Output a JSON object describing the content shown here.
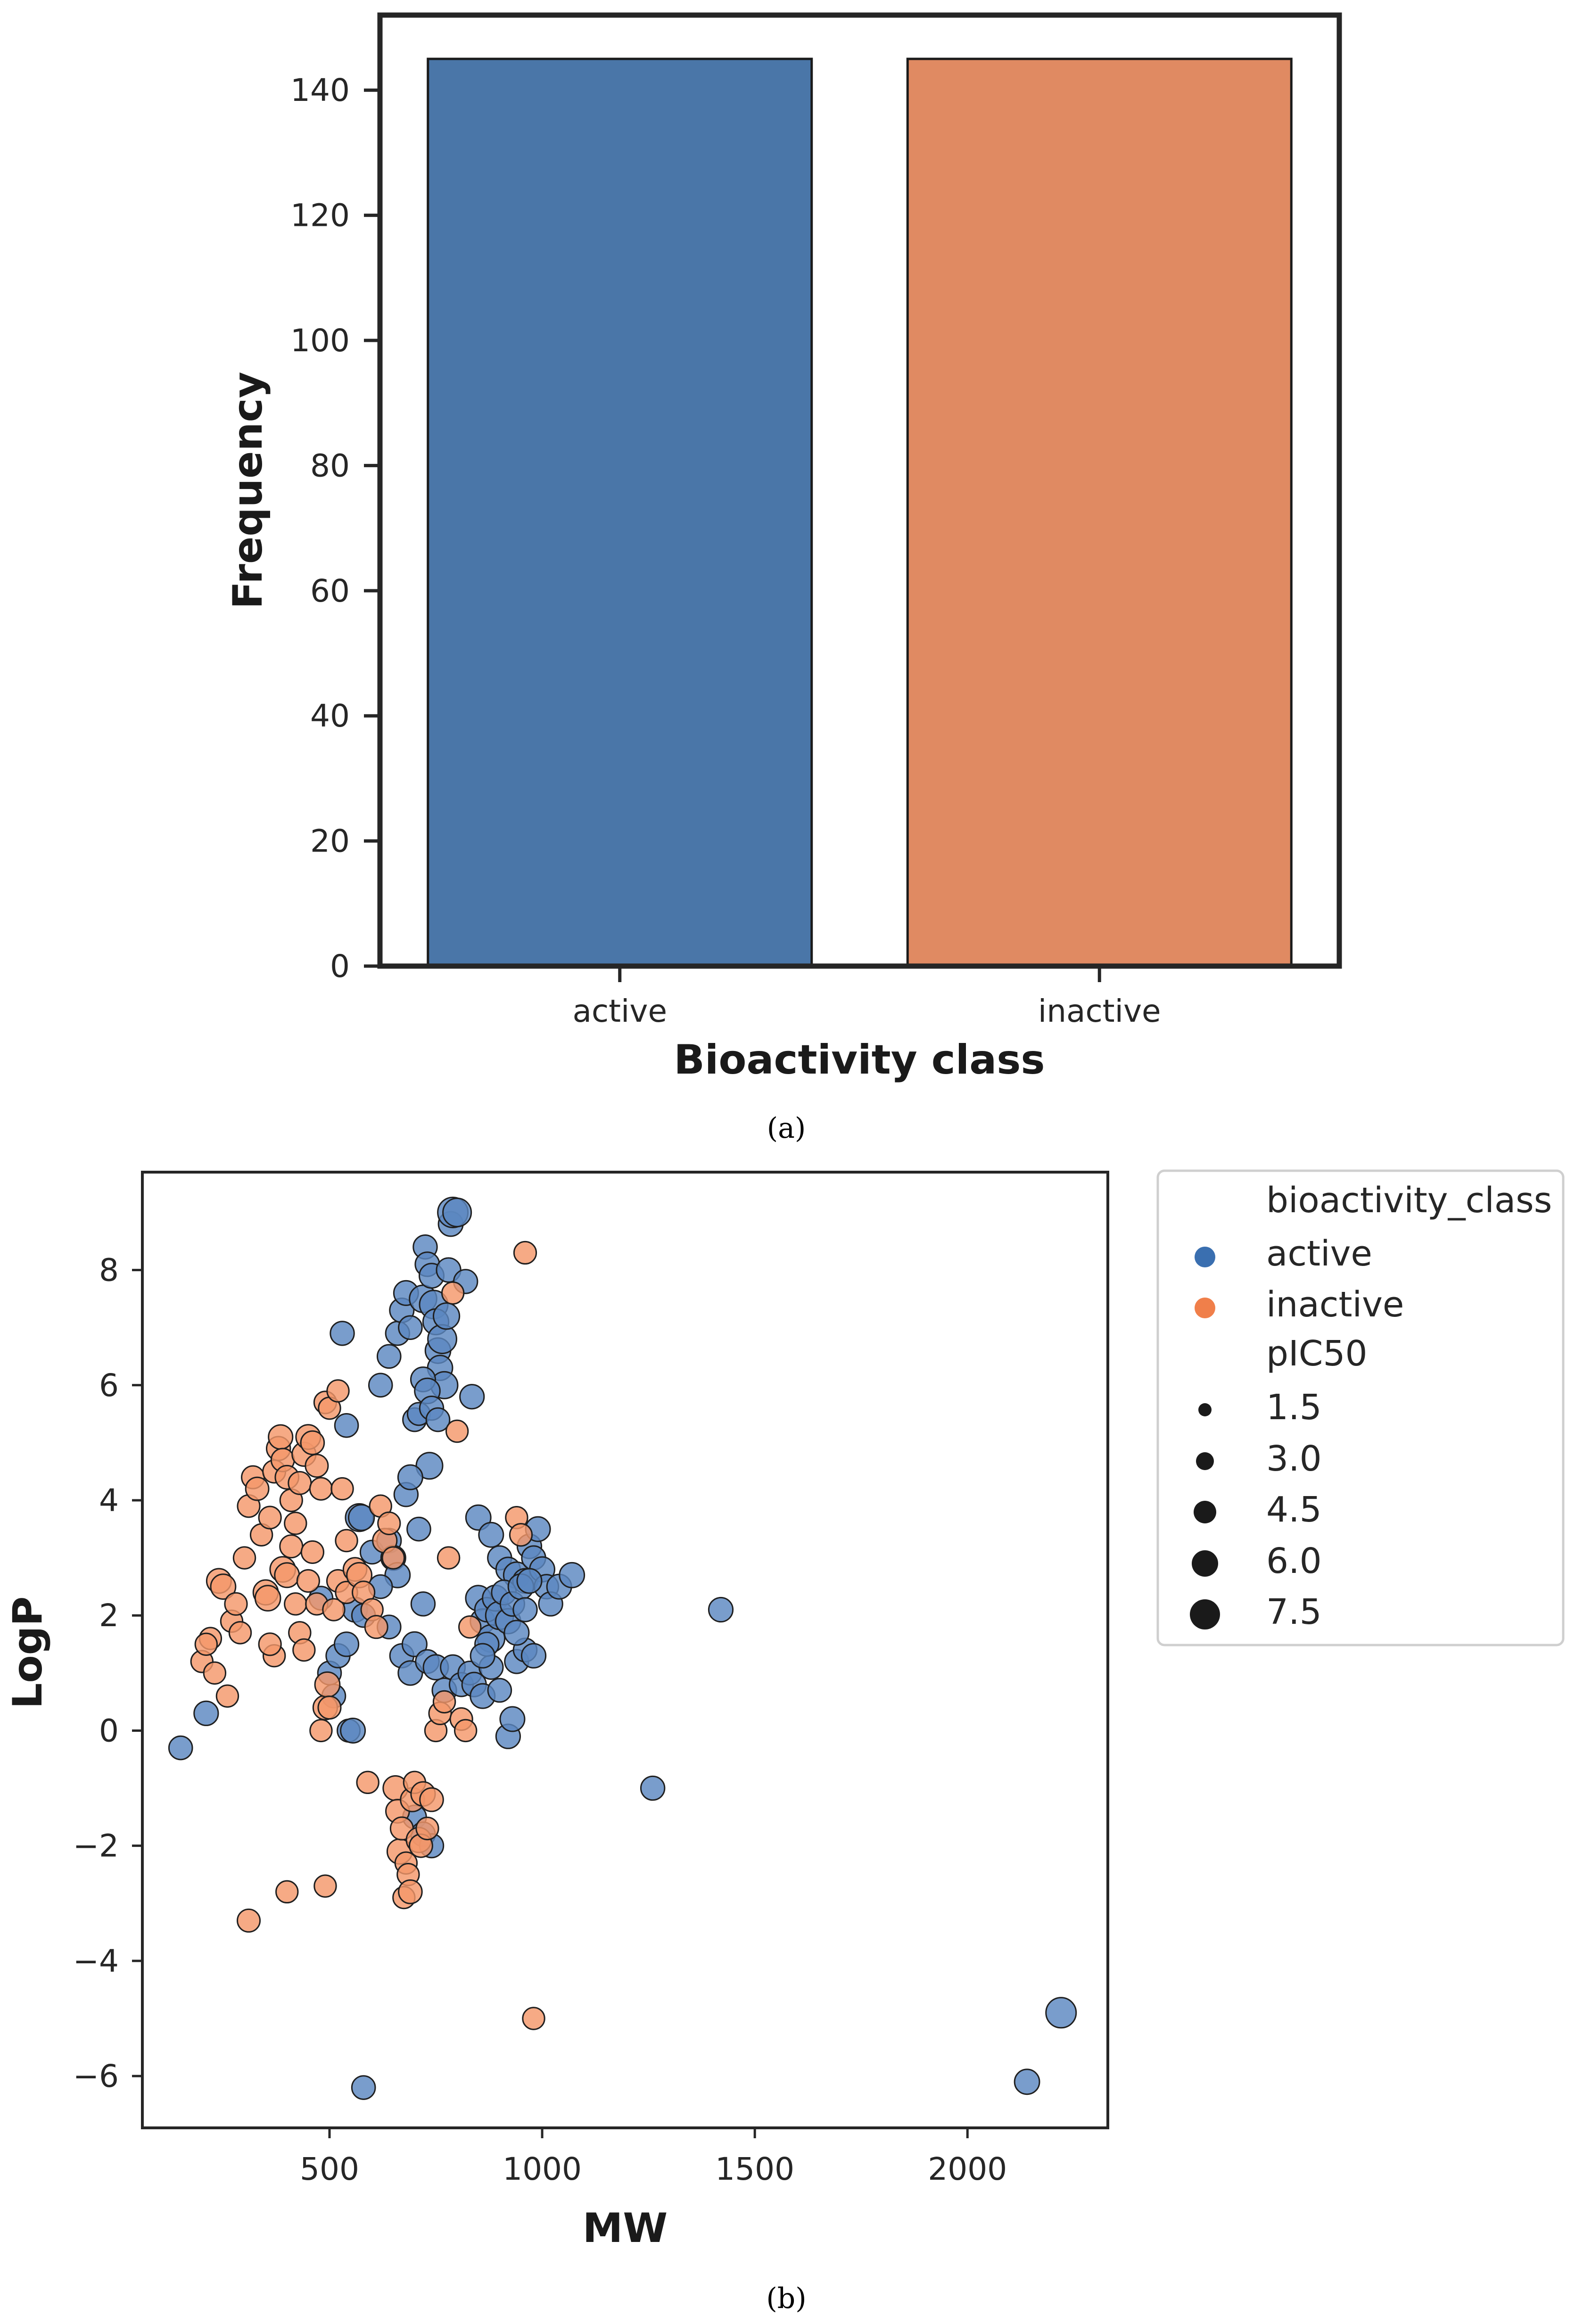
{
  "chart_data": [
    {
      "type": "bar",
      "caption": "(a)",
      "xlabel": "Bioactivity class",
      "ylabel": "Frequency",
      "categories": [
        "active",
        "inactive"
      ],
      "values": [
        145,
        145
      ],
      "colors": [
        "#4a76a8",
        "#e08a62"
      ],
      "ylim": [
        0,
        152
      ],
      "yticks": [
        0,
        20,
        40,
        60,
        80,
        100,
        120,
        140
      ],
      "grid": false
    },
    {
      "type": "scatter",
      "caption": "(b)",
      "xlabel": "MW",
      "ylabel": "LogP",
      "xlim": [
        60,
        2330
      ],
      "ylim": [
        -6.9,
        9.7
      ],
      "xticks": [
        500,
        1000,
        1500,
        2000
      ],
      "yticks": [
        -6,
        -4,
        -2,
        0,
        2,
        4,
        6,
        8
      ],
      "grid": false,
      "legend": {
        "position": "outside-right",
        "hue_title": "bioactivity_class",
        "hue_entries": [
          {
            "label": "active",
            "color": "#3a6fb0"
          },
          {
            "label": "inactive",
            "color": "#f07f4a"
          }
        ],
        "size_title": "pIC50",
        "size_entries": [
          "1.5",
          "3.0",
          "4.5",
          "6.0",
          "7.5"
        ]
      },
      "series": [
        {
          "name": "active",
          "color": "#5b88c1",
          "points": [
            [
              150,
              -0.3,
              5.2
            ],
            [
              210,
              0.3,
              5.4
            ],
            [
              530,
              6.9,
              5.3
            ],
            [
              540,
              5.3,
              5.2
            ],
            [
              545,
              0.0,
              5.0
            ],
            [
              555,
              0.0,
              5.5
            ],
            [
              570,
              3.7,
              6.3
            ],
            [
              575,
              3.7,
              5.8
            ],
            [
              580,
              -6.2,
              5.2
            ],
            [
              620,
              6.0,
              5.2
            ],
            [
              640,
              6.5,
              5.2
            ],
            [
              660,
              6.9,
              5.3
            ],
            [
              670,
              7.3,
              5.4
            ],
            [
              680,
              7.6,
              5.5
            ],
            [
              690,
              7.0,
              5.2
            ],
            [
              700,
              5.4,
              5.2
            ],
            [
              710,
              5.5,
              5.0
            ],
            [
              720,
              7.5,
              6.2
            ],
            [
              725,
              8.4,
              5.3
            ],
            [
              730,
              8.1,
              5.4
            ],
            [
              740,
              7.9,
              5.5
            ],
            [
              745,
              7.4,
              6.5
            ],
            [
              750,
              7.1,
              5.8
            ],
            [
              755,
              6.6,
              5.7
            ],
            [
              760,
              6.3,
              5.6
            ],
            [
              765,
              6.8,
              6.6
            ],
            [
              770,
              6.0,
              6.1
            ],
            [
              775,
              7.2,
              5.9
            ],
            [
              780,
              8.0,
              5.4
            ],
            [
              785,
              8.8,
              5.5
            ],
            [
              790,
              9.0,
              7.0
            ],
            [
              800,
              9.0,
              6.5
            ],
            [
              820,
              7.8,
              5.3
            ],
            [
              835,
              5.8,
              5.4
            ],
            [
              720,
              6.1,
              5.5
            ],
            [
              730,
              5.9,
              5.7
            ],
            [
              740,
              5.6,
              5.3
            ],
            [
              755,
              5.4,
              5.2
            ],
            [
              735,
              4.6,
              6.0
            ],
            [
              680,
              4.1,
              5.3
            ],
            [
              690,
              4.4,
              5.5
            ],
            [
              710,
              3.5,
              5.2
            ],
            [
              600,
              3.1,
              5.2
            ],
            [
              640,
              3.3,
              5.4
            ],
            [
              650,
              3.0,
              5.5
            ],
            [
              660,
              2.7,
              5.6
            ],
            [
              620,
              2.5,
              5.2
            ],
            [
              480,
              2.3,
              5.2
            ],
            [
              500,
              1.0,
              5.2
            ],
            [
              510,
              0.6,
              5.2
            ],
            [
              520,
              1.3,
              5.3
            ],
            [
              540,
              1.5,
              5.4
            ],
            [
              560,
              2.1,
              5.5
            ],
            [
              580,
              2.0,
              5.2
            ],
            [
              640,
              1.8,
              5.2
            ],
            [
              670,
              1.3,
              5.3
            ],
            [
              690,
              1.0,
              5.4
            ],
            [
              700,
              1.5,
              5.5
            ],
            [
              720,
              2.2,
              5.3
            ],
            [
              730,
              1.2,
              5.2
            ],
            [
              750,
              1.1,
              5.6
            ],
            [
              770,
              0.7,
              5.4
            ],
            [
              790,
              1.1,
              5.5
            ],
            [
              810,
              0.8,
              5.3
            ],
            [
              830,
              1.0,
              5.2
            ],
            [
              840,
              0.8,
              5.4
            ],
            [
              860,
              0.6,
              5.5
            ],
            [
              880,
              1.1,
              5.3
            ],
            [
              900,
              0.7,
              5.2
            ],
            [
              920,
              -0.1,
              5.4
            ],
            [
              930,
              0.2,
              5.5
            ],
            [
              940,
              1.2,
              5.3
            ],
            [
              960,
              1.4,
              5.2
            ],
            [
              980,
              1.3,
              5.4
            ],
            [
              850,
              3.7,
              5.6
            ],
            [
              880,
              3.4,
              5.5
            ],
            [
              900,
              3.0,
              5.3
            ],
            [
              920,
              2.8,
              5.4
            ],
            [
              940,
              2.7,
              5.9
            ],
            [
              960,
              2.6,
              5.5
            ],
            [
              970,
              3.2,
              5.4
            ],
            [
              980,
              3.0,
              5.3
            ],
            [
              990,
              3.5,
              5.5
            ],
            [
              1000,
              2.8,
              5.6
            ],
            [
              1010,
              2.5,
              5.4
            ],
            [
              1020,
              2.2,
              5.3
            ],
            [
              1040,
              2.5,
              5.5
            ],
            [
              1070,
              2.7,
              5.6
            ],
            [
              850,
              2.3,
              5.7
            ],
            [
              860,
              1.9,
              5.5
            ],
            [
              870,
              2.1,
              5.4
            ],
            [
              880,
              1.6,
              6.2
            ],
            [
              890,
              2.3,
              5.8
            ],
            [
              900,
              2.0,
              6.4
            ],
            [
              910,
              2.4,
              5.5
            ],
            [
              920,
              1.9,
              5.6
            ],
            [
              930,
              2.2,
              5.4
            ],
            [
              940,
              1.7,
              5.5
            ],
            [
              950,
              2.5,
              5.7
            ],
            [
              960,
              2.1,
              5.3
            ],
            [
              970,
              2.6,
              5.5
            ],
            [
              870,
              1.5,
              5.3
            ],
            [
              860,
              1.3,
              5.4
            ],
            [
              1260,
              -1.0,
              5.3
            ],
            [
              1420,
              2.1,
              5.4
            ],
            [
              2140,
              -6.1,
              5.6
            ],
            [
              2220,
              -4.9,
              7.0
            ],
            [
              700,
              -1.5,
              5.2
            ],
            [
              720,
              -1.8,
              5.4
            ],
            [
              740,
              -2.0,
              5.3
            ]
          ]
        },
        {
          "name": "inactive",
          "color": "#f4976a",
          "points": [
            [
              310,
              -3.3,
              5.0
            ],
            [
              400,
              -2.8,
              4.8
            ],
            [
              490,
              -2.7,
              4.8
            ],
            [
              980,
              -5.0,
              4.8
            ],
            [
              960,
              8.3,
              4.9
            ],
            [
              200,
              1.2,
              4.8
            ],
            [
              220,
              1.6,
              4.8
            ],
            [
              230,
              1.0,
              4.8
            ],
            [
              210,
              1.5,
              4.8
            ],
            [
              240,
              2.6,
              5.5
            ],
            [
              250,
              2.5,
              5.6
            ],
            [
              260,
              0.6,
              4.8
            ],
            [
              270,
              1.9,
              4.8
            ],
            [
              280,
              2.2,
              4.9
            ],
            [
              290,
              1.7,
              4.8
            ],
            [
              300,
              3.0,
              4.8
            ],
            [
              310,
              3.9,
              4.9
            ],
            [
              320,
              4.4,
              5.0
            ],
            [
              330,
              4.2,
              5.1
            ],
            [
              340,
              3.4,
              4.8
            ],
            [
              350,
              2.4,
              5.6
            ],
            [
              355,
              2.3,
              5.7
            ],
            [
              360,
              3.7,
              4.9
            ],
            [
              370,
              4.5,
              5.0
            ],
            [
              380,
              4.9,
              5.3
            ],
            [
              385,
              5.1,
              5.4
            ],
            [
              390,
              4.7,
              5.1
            ],
            [
              400,
              4.4,
              5.2
            ],
            [
              410,
              4.0,
              4.9
            ],
            [
              420,
              3.6,
              4.8
            ],
            [
              430,
              4.3,
              5.0
            ],
            [
              440,
              4.8,
              5.3
            ],
            [
              450,
              5.1,
              5.5
            ],
            [
              460,
              5.0,
              5.2
            ],
            [
              470,
              4.6,
              5.0
            ],
            [
              480,
              4.2,
              4.9
            ],
            [
              490,
              5.7,
              4.9
            ],
            [
              500,
              5.6,
              4.8
            ],
            [
              520,
              5.9,
              4.8
            ],
            [
              530,
              4.2,
              4.8
            ],
            [
              540,
              3.3,
              4.8
            ],
            [
              390,
              2.8,
              5.7
            ],
            [
              400,
              2.7,
              5.5
            ],
            [
              410,
              3.2,
              5.0
            ],
            [
              420,
              2.2,
              4.8
            ],
            [
              430,
              1.7,
              4.8
            ],
            [
              440,
              1.4,
              4.8
            ],
            [
              450,
              2.6,
              4.9
            ],
            [
              460,
              3.1,
              4.9
            ],
            [
              470,
              2.2,
              4.8
            ],
            [
              480,
              0.0,
              4.8
            ],
            [
              490,
              0.4,
              5.4
            ],
            [
              495,
              0.8,
              5.6
            ],
            [
              500,
              0.4,
              5.0
            ],
            [
              510,
              2.1,
              4.8
            ],
            [
              520,
              2.6,
              4.9
            ],
            [
              540,
              2.4,
              4.8
            ],
            [
              560,
              2.8,
              5.2
            ],
            [
              570,
              2.7,
              5.6
            ],
            [
              580,
              2.4,
              4.9
            ],
            [
              590,
              -0.9,
              4.8
            ],
            [
              600,
              2.1,
              4.8
            ],
            [
              610,
              1.8,
              5.0
            ],
            [
              620,
              3.9,
              4.8
            ],
            [
              630,
              3.3,
              5.4
            ],
            [
              640,
              3.6,
              4.9
            ],
            [
              650,
              3.0,
              4.8
            ],
            [
              655,
              -1.0,
              5.5
            ],
            [
              660,
              -1.4,
              5.2
            ],
            [
              665,
              -2.1,
              5.6
            ],
            [
              670,
              -1.7,
              5.0
            ],
            [
              675,
              -2.9,
              4.8
            ],
            [
              680,
              -2.3,
              4.8
            ],
            [
              685,
              -2.5,
              4.8
            ],
            [
              690,
              -2.8,
              5.2
            ],
            [
              695,
              -1.2,
              5.3
            ],
            [
              700,
              -0.9,
              4.8
            ],
            [
              710,
              -1.9,
              5.6
            ],
            [
              715,
              -2.0,
              5.1
            ],
            [
              720,
              -1.1,
              5.4
            ],
            [
              730,
              -1.7,
              4.9
            ],
            [
              740,
              -1.2,
              5.2
            ],
            [
              750,
              0.0,
              4.8
            ],
            [
              760,
              0.3,
              4.9
            ],
            [
              770,
              0.5,
              4.8
            ],
            [
              780,
              3.0,
              4.8
            ],
            [
              790,
              7.6,
              4.8
            ],
            [
              800,
              5.2,
              4.8
            ],
            [
              810,
              0.2,
              4.9
            ],
            [
              820,
              0.0,
              4.8
            ],
            [
              830,
              1.8,
              4.8
            ],
            [
              940,
              3.7,
              4.8
            ],
            [
              950,
              3.4,
              4.9
            ],
            [
              370,
              1.3,
              4.8
            ],
            [
              360,
              1.5,
              4.9
            ]
          ]
        }
      ]
    }
  ]
}
